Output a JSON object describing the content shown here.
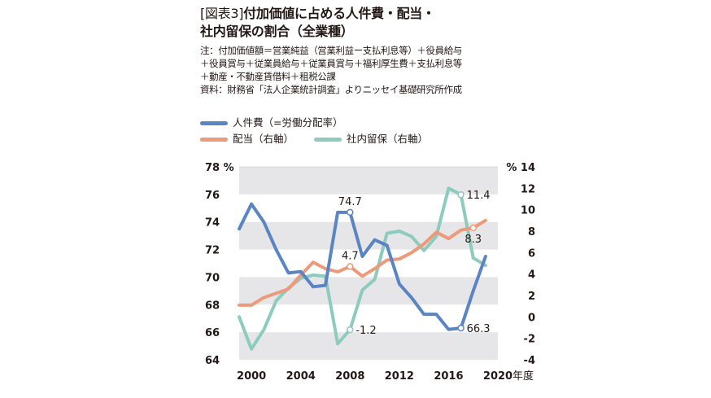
{
  "title": {
    "tag": "[図表3]",
    "line1": "付加価値に占める人件費・配当・",
    "line2": "社内留保の割合（全業種）"
  },
  "notes": [
    "注：付加価値額＝営業純益（営業利益ー支払利息等）＋役員給与",
    "＋役員賞与＋従業員給与＋従業員賞与＋福利厚生費＋支払利息等",
    "＋動産・不動産賃借料＋租税公課",
    "資料：財務省「法人企業統計調査」よりニッセイ基礎研究所作成"
  ],
  "colors": {
    "labor": "#5a84c4",
    "dividend": "#ec9a7a",
    "retained": "#8ccbbd",
    "band": "#e6e6e8"
  },
  "chart_data": {
    "type": "line",
    "x": [
      1999,
      2000,
      2001,
      2002,
      2003,
      2004,
      2005,
      2006,
      2007,
      2008,
      2009,
      2010,
      2011,
      2012,
      2013,
      2014,
      2015,
      2016,
      2017,
      2018,
      2019
    ],
    "series": [
      {
        "name": "人件費（=労働分配率）",
        "axis": "left",
        "values": [
          73.5,
          75.3,
          74.0,
          72.0,
          70.3,
          70.4,
          69.3,
          69.4,
          74.7,
          74.7,
          71.5,
          72.7,
          72.3,
          69.5,
          68.5,
          67.3,
          67.3,
          66.2,
          66.3,
          69.0,
          71.5
        ]
      },
      {
        "name": "配当（右軸）",
        "axis": "right",
        "values": [
          1.1,
          1.1,
          1.8,
          2.2,
          2.6,
          3.9,
          5.1,
          4.5,
          4.2,
          4.7,
          3.8,
          4.5,
          5.3,
          5.4,
          6.0,
          6.8,
          7.9,
          7.3,
          8.1,
          8.3,
          9.0
        ]
      },
      {
        "name": "社内留保（右軸）",
        "axis": "right",
        "values": [
          0.0,
          -3.0,
          -1.2,
          1.5,
          2.7,
          3.6,
          3.9,
          3.8,
          -2.5,
          -1.2,
          2.5,
          3.5,
          7.8,
          8.0,
          7.5,
          6.2,
          7.5,
          12.0,
          11.4,
          5.5,
          4.8
        ]
      }
    ],
    "annotations": [
      {
        "series": 0,
        "x": 2008,
        "label": "74.7",
        "pos": "above"
      },
      {
        "series": 0,
        "x": 2017,
        "label": "66.3",
        "pos": "right"
      },
      {
        "series": 1,
        "x": 2008,
        "label": "4.7",
        "pos": "above"
      },
      {
        "series": 1,
        "x": 2018,
        "label": "8.3",
        "pos": "below"
      },
      {
        "series": 2,
        "x": 2008,
        "label": "-1.2",
        "pos": "right"
      },
      {
        "series": 2,
        "x": 2017,
        "label": "11.4",
        "pos": "right"
      }
    ],
    "xticks": [
      2000,
      2004,
      2008,
      2012,
      2016,
      2020
    ],
    "xlim": [
      1999,
      2020
    ],
    "ylim_left": [
      64,
      78
    ],
    "yticks_left": [
      64,
      66,
      68,
      70,
      72,
      74,
      76
    ],
    "ylabel_left": "78 %",
    "ylim_right": [
      -4,
      14
    ],
    "yticks_right": [
      -4,
      -2,
      0,
      2,
      4,
      6,
      8,
      10,
      12
    ],
    "ylabel_right": "% 14",
    "xlabel": "年度",
    "grid": "alternating horizontal bands"
  }
}
